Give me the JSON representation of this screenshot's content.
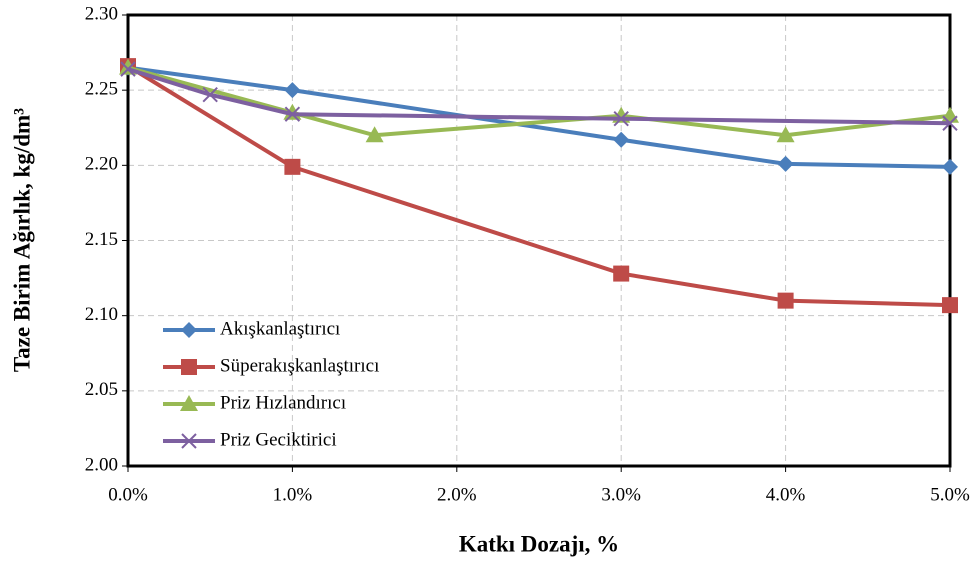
{
  "chart_data": {
    "type": "line",
    "xlabel": "Katkı Dozajı, %",
    "ylabel": "Taze Birim Ağırlık, kg/dm³",
    "xlim": [
      0,
      5
    ],
    "ylim": [
      2.0,
      2.3
    ],
    "xticks": [
      {
        "value": 0,
        "label": "0.0%"
      },
      {
        "value": 1,
        "label": "1.0%"
      },
      {
        "value": 2,
        "label": "2.0%"
      },
      {
        "value": 3,
        "label": "3.0%"
      },
      {
        "value": 4,
        "label": "4.0%"
      },
      {
        "value": 5,
        "label": "5.0%"
      }
    ],
    "yticks": [
      {
        "value": 2.0,
        "label": "2.00"
      },
      {
        "value": 2.05,
        "label": "2.05"
      },
      {
        "value": 2.1,
        "label": "2.10"
      },
      {
        "value": 2.15,
        "label": "2.15"
      },
      {
        "value": 2.2,
        "label": "2.20"
      },
      {
        "value": 2.25,
        "label": "2.25"
      },
      {
        "value": 2.3,
        "label": "2.30"
      }
    ],
    "grid": true,
    "legend": "lower left",
    "series": [
      {
        "name": "Akışkanlaştırıcı",
        "color": "#4a7ebb",
        "marker": "diamond",
        "x": [
          0,
          1,
          3,
          4,
          5
        ],
        "values": [
          2.265,
          2.25,
          2.217,
          2.201,
          2.199
        ]
      },
      {
        "name": "Süperakışkanlaştırıcı",
        "color": "#be4b48",
        "marker": "square",
        "x": [
          0,
          1,
          3,
          4,
          5
        ],
        "values": [
          2.266,
          2.199,
          2.128,
          2.11,
          2.107
        ]
      },
      {
        "name": "Priz Hızlandırıcı",
        "color": "#98b954",
        "marker": "triangle",
        "x": [
          0,
          1,
          1.5,
          3,
          4,
          5
        ],
        "values": [
          2.265,
          2.235,
          2.22,
          2.233,
          2.22,
          2.233
        ]
      },
      {
        "name": "Priz Geciktirici",
        "color": "#7d60a0",
        "marker": "x",
        "x": [
          0,
          0.5,
          1,
          3,
          5
        ],
        "values": [
          2.264,
          2.247,
          2.234,
          2.231,
          2.228
        ]
      }
    ]
  }
}
